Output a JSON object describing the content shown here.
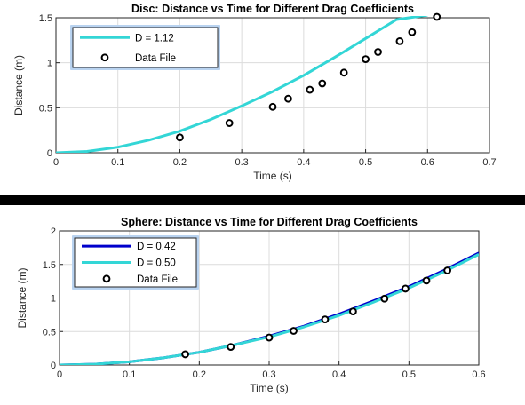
{
  "chart_data": [
    {
      "type": "line",
      "title": "Disc: Distance vs Time for Different Drag Coefficients",
      "xlabel": "Time (s)",
      "ylabel": "Distance (m)",
      "xlim": [
        0,
        0.7
      ],
      "ylim": [
        0,
        1.5
      ],
      "xticks": [
        "0",
        "0.1",
        "0.2",
        "0.3",
        "0.4",
        "0.5",
        "0.6",
        "0.7"
      ],
      "yticks": [
        "0",
        "0.5",
        "1",
        "1.5"
      ],
      "grid": true,
      "legend_position": "top-left",
      "series": [
        {
          "name": "D = 1.12",
          "kind": "line",
          "color": "#33d6d6",
          "x": [
            0,
            0.05,
            0.1,
            0.15,
            0.2,
            0.25,
            0.3,
            0.35,
            0.4,
            0.45,
            0.5,
            0.55,
            0.6
          ],
          "y": [
            0,
            0.015,
            0.062,
            0.14,
            0.24,
            0.37,
            0.52,
            0.68,
            0.86,
            1.06,
            1.27,
            1.48,
            1.53
          ]
        },
        {
          "name": "Data File",
          "kind": "markers",
          "color": "#000000",
          "x": [
            0.2,
            0.28,
            0.35,
            0.375,
            0.41,
            0.43,
            0.465,
            0.5,
            0.52,
            0.555,
            0.575,
            0.615
          ],
          "y": [
            0.17,
            0.33,
            0.51,
            0.6,
            0.7,
            0.77,
            0.89,
            1.04,
            1.12,
            1.24,
            1.34,
            1.51
          ]
        }
      ]
    },
    {
      "type": "line",
      "title": "Sphere: Distance vs Time for Different Drag Coefficients",
      "xlabel": "Time (s)",
      "ylabel": "Distance (m)",
      "xlim": [
        0,
        0.6
      ],
      "ylim": [
        0,
        2
      ],
      "xticks": [
        "0",
        "0.1",
        "0.2",
        "0.3",
        "0.4",
        "0.5",
        "0.6"
      ],
      "yticks": [
        "0",
        "0.5",
        "1",
        "1.5",
        "2"
      ],
      "grid": true,
      "legend_position": "top-left",
      "series": [
        {
          "name": "D = 0.42",
          "kind": "line",
          "color": "#0000cc",
          "x": [
            0,
            0.05,
            0.1,
            0.15,
            0.2,
            0.25,
            0.3,
            0.35,
            0.4,
            0.45,
            0.5,
            0.55,
            0.6
          ],
          "y": [
            0,
            0.012,
            0.048,
            0.11,
            0.19,
            0.3,
            0.43,
            0.58,
            0.76,
            0.96,
            1.17,
            1.41,
            1.67
          ]
        },
        {
          "name": "D = 0.50",
          "kind": "line",
          "color": "#33d6d6",
          "x": [
            0,
            0.05,
            0.1,
            0.15,
            0.2,
            0.25,
            0.3,
            0.35,
            0.4,
            0.45,
            0.5,
            0.55,
            0.6
          ],
          "y": [
            0,
            0.012,
            0.048,
            0.11,
            0.19,
            0.3,
            0.42,
            0.57,
            0.74,
            0.94,
            1.15,
            1.39,
            1.65
          ]
        },
        {
          "name": "Data File",
          "kind": "markers",
          "color": "#000000",
          "x": [
            0.18,
            0.245,
            0.3,
            0.335,
            0.38,
            0.42,
            0.465,
            0.495,
            0.525,
            0.555
          ],
          "y": [
            0.16,
            0.27,
            0.41,
            0.51,
            0.68,
            0.8,
            0.99,
            1.14,
            1.26,
            1.41
          ]
        }
      ]
    }
  ]
}
